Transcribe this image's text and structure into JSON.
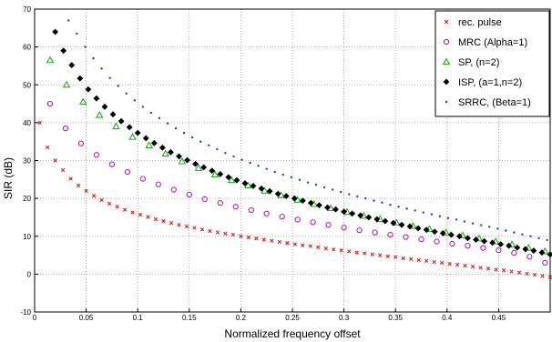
{
  "chart_data": {
    "type": "scatter",
    "xlabel": "Normalized frequency offset",
    "ylabel": "SIR (dB)",
    "xlim": [
      0,
      0.5
    ],
    "ylim": [
      -10,
      70
    ],
    "x_ticks": [
      0,
      0.05,
      0.1,
      0.15,
      0.2,
      0.25,
      0.3,
      0.35,
      0.4,
      0.45
    ],
    "x_tick_labels": [
      "0",
      "0.05",
      "0.1",
      "0.15",
      "0.2",
      "0.25",
      "0.3",
      "0.35",
      "0.4",
      "0.45"
    ],
    "y_ticks": [
      -10,
      0,
      10,
      20,
      30,
      40,
      50,
      60,
      70
    ],
    "y_tick_labels": [
      "-10",
      "0",
      "10",
      "20",
      "30",
      "40",
      "50",
      "60",
      "70"
    ],
    "grid": true,
    "grid_style": "dotted",
    "legend_position": "top-right",
    "series": [
      {
        "name": "rec. pulse",
        "marker": "x",
        "color": "#d62020",
        "x": [
          0.005,
          0.0125,
          0.02,
          0.0275,
          0.035,
          0.0425,
          0.05,
          0.0575,
          0.065,
          0.0725,
          0.08,
          0.0875,
          0.095,
          0.1025,
          0.11,
          0.1175,
          0.125,
          0.1325,
          0.14,
          0.1475,
          0.155,
          0.1625,
          0.17,
          0.1775,
          0.185,
          0.1925,
          0.2,
          0.2075,
          0.215,
          0.2225,
          0.23,
          0.2375,
          0.245,
          0.2525,
          0.26,
          0.2675,
          0.275,
          0.2825,
          0.29,
          0.2975,
          0.305,
          0.3125,
          0.32,
          0.3275,
          0.335,
          0.3425,
          0.35,
          0.3575,
          0.365,
          0.3725,
          0.38,
          0.3875,
          0.395,
          0.4025,
          0.41,
          0.4175,
          0.425,
          0.4325,
          0.44,
          0.4475,
          0.455,
          0.4625,
          0.47,
          0.4775,
          0.485,
          0.4925,
          0.5
        ],
        "y": [
          40,
          33.5,
          30,
          27.5,
          25.2,
          23.4,
          22,
          20.7,
          19.6,
          18.6,
          17.8,
          17,
          16.3,
          15.7,
          15.1,
          14.5,
          14,
          13.5,
          13,
          12.6,
          12.2,
          11.8,
          11.4,
          11,
          10.7,
          10.4,
          10,
          9.7,
          9.4,
          9.1,
          8.8,
          8.5,
          8.2,
          7.9,
          7.6,
          7.4,
          7.1,
          6.8,
          6.5,
          6.3,
          6,
          5.7,
          5.5,
          5.2,
          5,
          4.7,
          4.5,
          4.2,
          4,
          3.7,
          3.5,
          3.2,
          3,
          2.7,
          2.5,
          2.2,
          2,
          1.7,
          1.5,
          1.2,
          1,
          0.7,
          0.4,
          0.1,
          -0.2,
          -0.5,
          -0.8
        ]
      },
      {
        "name": "MRC (Alpha=1)",
        "marker": "o",
        "color": "#b020b0",
        "x": [
          0.015,
          0.03,
          0.045,
          0.06,
          0.075,
          0.09,
          0.105,
          0.12,
          0.135,
          0.15,
          0.165,
          0.18,
          0.195,
          0.21,
          0.225,
          0.24,
          0.255,
          0.27,
          0.285,
          0.3,
          0.315,
          0.33,
          0.345,
          0.36,
          0.375,
          0.39,
          0.405,
          0.42,
          0.435,
          0.45,
          0.465,
          0.48,
          0.495
        ],
        "y": [
          45,
          38.5,
          34.5,
          31.5,
          29,
          27,
          25.2,
          23.7,
          22.3,
          21,
          19.8,
          18.8,
          17.8,
          16.9,
          16,
          15.2,
          14.4,
          13.7,
          13,
          12.3,
          11.6,
          11,
          10.4,
          9.8,
          9.2,
          8.6,
          8,
          7.5,
          6.9,
          6.3,
          5.6,
          4.6,
          3
        ]
      },
      {
        "name": "SP, (n=2)",
        "marker": "triangle",
        "color": "#20b020",
        "x": [
          0.015,
          0.031,
          0.047,
          0.063,
          0.079,
          0.095,
          0.111,
          0.127,
          0.143,
          0.159,
          0.175,
          0.191,
          0.207,
          0.223,
          0.239,
          0.255,
          0.271,
          0.287,
          0.303,
          0.319,
          0.335,
          0.351,
          0.367,
          0.383,
          0.399,
          0.415,
          0.431,
          0.447,
          0.463,
          0.479,
          0.495
        ],
        "y": [
          56.5,
          50,
          45.5,
          42,
          39,
          36.2,
          34,
          31.8,
          29.8,
          28,
          26.3,
          24.8,
          23.4,
          22,
          20.8,
          19.6,
          18.5,
          17.4,
          16.4,
          15.4,
          14.5,
          13.6,
          12.7,
          11.9,
          11,
          10.2,
          9.4,
          8.6,
          7.8,
          6.9,
          6
        ]
      },
      {
        "name": "ISP, (a=1,n=2)",
        "marker": "diamond",
        "color": "#000000",
        "x": [
          0.02,
          0.028,
          0.036,
          0.044,
          0.052,
          0.06,
          0.068,
          0.076,
          0.084,
          0.092,
          0.1,
          0.108,
          0.116,
          0.124,
          0.132,
          0.14,
          0.148,
          0.156,
          0.164,
          0.172,
          0.18,
          0.188,
          0.196,
          0.204,
          0.212,
          0.22,
          0.228,
          0.236,
          0.244,
          0.252,
          0.26,
          0.268,
          0.276,
          0.284,
          0.292,
          0.3,
          0.308,
          0.316,
          0.324,
          0.332,
          0.34,
          0.348,
          0.356,
          0.364,
          0.372,
          0.38,
          0.388,
          0.396,
          0.404,
          0.412,
          0.42,
          0.428,
          0.436,
          0.444,
          0.452,
          0.46,
          0.468,
          0.476,
          0.484,
          0.492,
          0.5
        ],
        "y": [
          64,
          59,
          55.2,
          51.7,
          48.8,
          46.4,
          44.2,
          42.2,
          40.4,
          38.8,
          37.3,
          35.9,
          34.6,
          33.4,
          32.2,
          31.1,
          30.1,
          29.1,
          28.2,
          27.3,
          26.4,
          25.6,
          24.8,
          24,
          23.3,
          22.6,
          21.9,
          21.2,
          20.6,
          20,
          19.4,
          18.8,
          18.2,
          17.6,
          17.1,
          16.5,
          16,
          15.5,
          15,
          14.5,
          14,
          13.5,
          13,
          12.6,
          12.1,
          11.7,
          11.2,
          10.8,
          10.4,
          10,
          9.5,
          9.1,
          8.7,
          8.3,
          7.9,
          7.5,
          7,
          6.6,
          6.2,
          5.7,
          5.2
        ]
      },
      {
        "name": "SRRC, (Beta=1)",
        "marker": "dot",
        "color": "#2040c0",
        "x": [
          0.033,
          0.041,
          0.049,
          0.057,
          0.065,
          0.073,
          0.081,
          0.089,
          0.097,
          0.105,
          0.113,
          0.121,
          0.129,
          0.137,
          0.145,
          0.153,
          0.161,
          0.169,
          0.177,
          0.185,
          0.193,
          0.201,
          0.209,
          0.217,
          0.225,
          0.233,
          0.241,
          0.249,
          0.257,
          0.265,
          0.273,
          0.281,
          0.289,
          0.297,
          0.305,
          0.313,
          0.321,
          0.329,
          0.337,
          0.345,
          0.353,
          0.361,
          0.369,
          0.377,
          0.385,
          0.393,
          0.401,
          0.409,
          0.417,
          0.425,
          0.433,
          0.441,
          0.449,
          0.457,
          0.465,
          0.473,
          0.481,
          0.489,
          0.497
        ],
        "y": [
          67,
          63.5,
          60,
          57,
          54.3,
          51.8,
          49.7,
          47.7,
          45.9,
          44.2,
          42.6,
          41.2,
          39.8,
          38.5,
          37.3,
          36.1,
          35,
          34,
          33,
          32,
          31.1,
          30.2,
          29.4,
          28.6,
          27.8,
          27,
          26.3,
          25.6,
          24.9,
          24.2,
          23.6,
          22.9,
          22.3,
          21.7,
          21.1,
          20.5,
          20,
          19.4,
          18.9,
          18.3,
          17.8,
          17.3,
          16.8,
          16.3,
          15.8,
          15.3,
          14.8,
          14.4,
          13.9,
          13.4,
          12.9,
          12.5,
          12,
          11.5,
          11,
          10.5,
          10,
          9.5,
          9
        ]
      }
    ]
  }
}
